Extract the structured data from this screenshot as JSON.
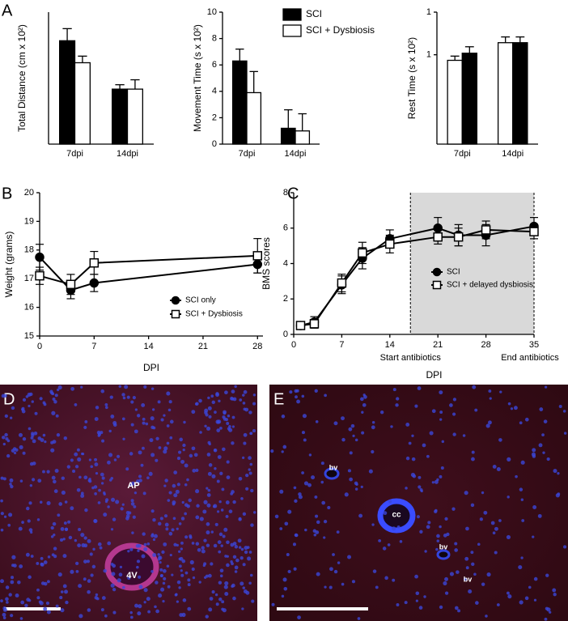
{
  "chart_data": [
    {
      "type": "bar",
      "y_label": "Total Distance (cm x 10²)",
      "categories": [
        "7dpi",
        "14dpi"
      ],
      "ylim": [
        0,
        24
      ],
      "series": [
        {
          "color": "#000000",
          "values": [
            18.8,
            10
          ],
          "errors": [
            2.2,
            0.8
          ]
        },
        {
          "color": "#ffffff",
          "values": [
            14.8,
            10
          ],
          "errors": [
            1.2,
            1.7
          ]
        }
      ]
    },
    {
      "type": "bar",
      "y_label": "Movement Time (s x 10²)",
      "categories": [
        "7dpi",
        "14dpi"
      ],
      "ylim": [
        0,
        10
      ],
      "yticks": [
        0,
        2,
        4,
        6,
        8,
        10
      ],
      "legend": "top-right",
      "series": [
        {
          "name": "SCI",
          "color": "#000000",
          "values": [
            6.3,
            1.2
          ],
          "errors": [
            0.9,
            1.4
          ]
        },
        {
          "name": "SCI + Dysbiosis",
          "color": "#ffffff",
          "values": [
            3.9,
            1.0
          ],
          "errors": [
            1.6,
            1.3
          ]
        }
      ]
    },
    {
      "type": "bar",
      "y_label": "Rest Time (s x 10²)",
      "categories": [
        "7dpi",
        "14dpi"
      ],
      "log_y": true,
      "ylim": [
        0.008,
        10
      ],
      "yticks": [
        {
          "value": 10,
          "label": "1"
        },
        1
      ],
      "series": [
        {
          "color": "#ffffff",
          "values": [
            0.74,
            1.92
          ],
          "errors": [
            0.19,
            0.7
          ]
        },
        {
          "color": "#000000",
          "values": [
            1.09,
            1.92
          ],
          "errors": [
            0.45,
            0.7
          ]
        }
      ]
    },
    {
      "type": "line",
      "x_label": "DPI",
      "y_label": "Weight (grams)",
      "xlim": [
        0,
        28.7
      ],
      "xticks": [
        0,
        7,
        14,
        21,
        28
      ],
      "ylim": [
        15,
        20
      ],
      "yticks": [
        15,
        16,
        17,
        18,
        19,
        20
      ],
      "legend": "bottom-right",
      "x": [
        0,
        4,
        7,
        28
      ],
      "series": [
        {
          "name": "SCI only",
          "color": "#000000",
          "marker": "circle",
          "marker_fill": "#000000",
          "values": [
            17.75,
            16.6,
            16.85,
            17.5
          ],
          "errors": [
            0.45,
            0.3,
            0.3,
            0.3
          ]
        },
        {
          "name": "SCI + Dysbiosis",
          "color": "#000000",
          "marker": "square",
          "marker_fill": "#ffffff",
          "values": [
            17.1,
            16.8,
            17.55,
            17.8
          ],
          "errors": [
            0.3,
            0.35,
            0.4,
            0.6
          ]
        }
      ]
    },
    {
      "type": "line",
      "x_label": "DPI",
      "y_label": "BMS scores",
      "xlim": [
        0,
        35
      ],
      "xticks": [
        0,
        7,
        14,
        21,
        28,
        35
      ],
      "ylim": [
        0,
        8
      ],
      "yticks": [
        0,
        2,
        4,
        6,
        8
      ],
      "legend": "right",
      "shaded_region": [
        17,
        35
      ],
      "annotations": [
        "Start antibiotics",
        "End antibiotics"
      ],
      "x": [
        1,
        3,
        7,
        10,
        14,
        21,
        24,
        28,
        35
      ],
      "series": [
        {
          "name": "SCI",
          "color": "#000000",
          "marker": "circle",
          "marker_fill": "#000000",
          "values": [
            0.5,
            0.7,
            2.8,
            4.3,
            5.4,
            6.0,
            5.6,
            5.6,
            6.1
          ],
          "errors": [
            0.15,
            0.3,
            0.5,
            0.6,
            0.5,
            0.6,
            0.6,
            0.6,
            0.5
          ]
        },
        {
          "name": "SCI + delayed dysbiosis",
          "color": "#000000",
          "marker": "square",
          "marker_fill": "#ffffff",
          "values": [
            0.5,
            0.6,
            2.9,
            4.6,
            5.1,
            5.5,
            5.5,
            5.9,
            5.8
          ],
          "errors": [
            0.15,
            0.25,
            0.5,
            0.6,
            0.5,
            0.4,
            0.5,
            0.5,
            0.4
          ]
        }
      ]
    }
  ],
  "panel_labels": [
    "A",
    "B",
    "C",
    "D",
    "E"
  ],
  "images": [
    {
      "annotations": [
        "AP",
        "4V"
      ]
    },
    {
      "annotations": [
        "cc",
        "bv",
        "bv",
        "bv"
      ]
    }
  ]
}
